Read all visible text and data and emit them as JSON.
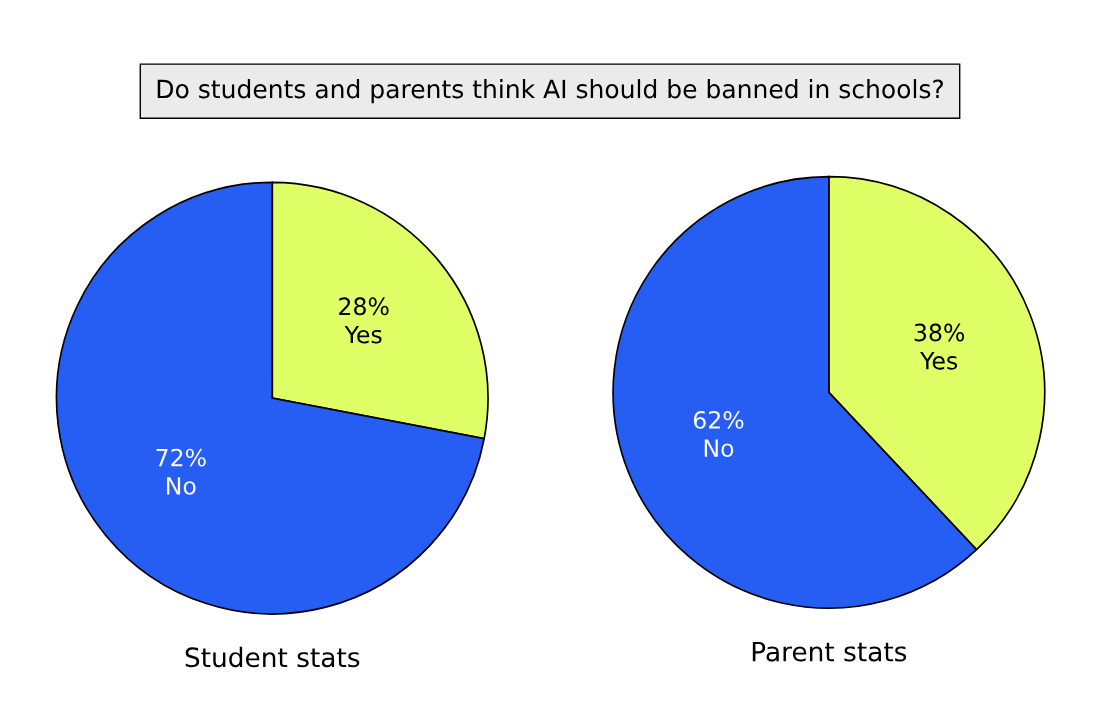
{
  "chart_data": [
    {
      "type": "pie",
      "title": "Do students and parents think AI should be banned in schools?",
      "xlabel": "Student stats",
      "categories": [
        "Yes",
        "No"
      ],
      "values": [
        28,
        72
      ],
      "value_labels": [
        "28%",
        "72%"
      ],
      "colors": [
        "#e0ff66",
        "#265df2"
      ]
    },
    {
      "type": "pie",
      "xlabel": "Parent stats",
      "categories": [
        "Yes",
        "No"
      ],
      "values": [
        38,
        62
      ],
      "value_labels": [
        "38%",
        "62%"
      ],
      "colors": [
        "#e0ff66",
        "#265df2"
      ]
    }
  ]
}
